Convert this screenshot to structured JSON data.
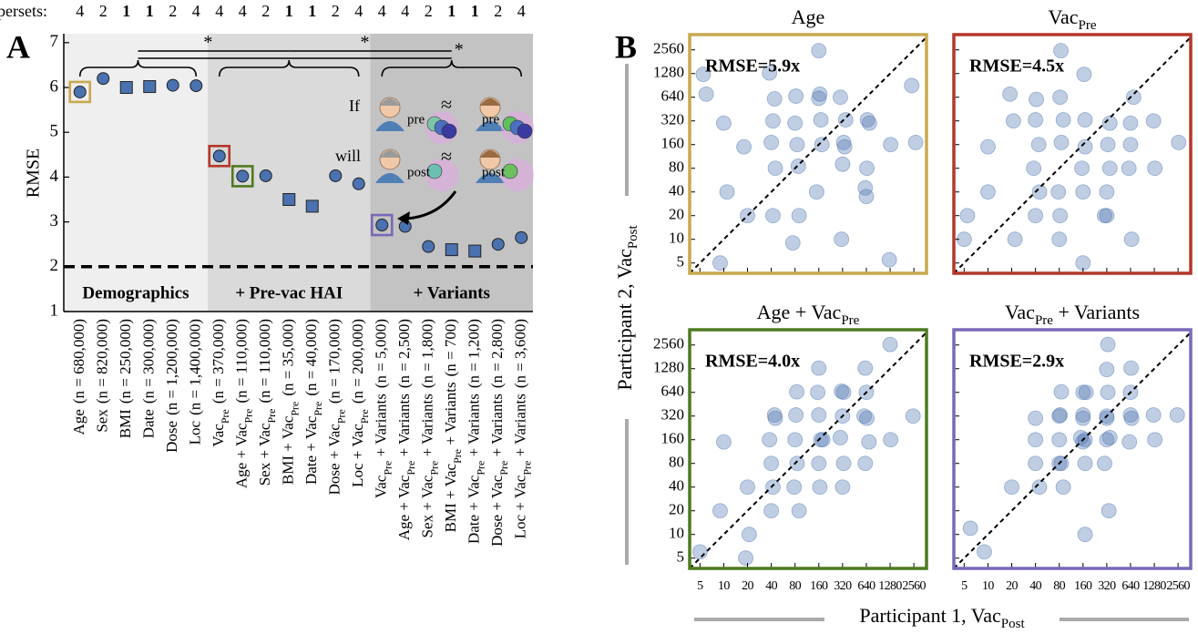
{
  "chart_data": [
    {
      "type": "dot",
      "superset_label": "persets:",
      "panel_label": "A",
      "ylabel": "RMSE",
      "categories": [
        [
          "Age"
        ],
        [
          "Sex"
        ],
        [
          "BMI"
        ],
        [
          "Date"
        ],
        [
          "Dose"
        ],
        [
          "Loc"
        ],
        [
          "Vac",
          "Pre"
        ],
        [
          "Age + Vac",
          "Pre"
        ],
        [
          "Sex + Vac",
          "Pre"
        ],
        [
          "BMI + Vac",
          "Pre"
        ],
        [
          "Date + Vac",
          "Pre"
        ],
        [
          "Dose + Vac",
          "Pre"
        ],
        [
          "Loc + Vac",
          "Pre"
        ],
        [
          "Vac",
          "Pre",
          " + Variants"
        ],
        [
          "Age + Vac",
          "Pre",
          " + Variants"
        ],
        [
          "Sex + Vac",
          "Pre",
          " + Variants"
        ],
        [
          "BMI + Vac",
          "Pre",
          " + Variants"
        ],
        [
          "Date + Vac",
          "Pre",
          " + Variants"
        ],
        [
          "Dose + Vac",
          "Pre",
          " + Variants"
        ],
        [
          "Loc + Vac",
          "Pre",
          " + Variants"
        ]
      ],
      "n_labels": [
        "(n = 680,000)",
        "(n = 820,000)",
        "(n = 250,000)",
        "(n = 300,000)",
        "(n = 1,200,000)",
        "(n = 1,400,000)",
        "(n = 370,000)",
        "(n = 110,000)",
        "(n = 110,000)",
        "(n = 35,000)",
        "(n = 40,000)",
        "(n = 170,000)",
        "(n = 200,000)",
        "(n = 5,000)",
        "(n = 2,500)",
        "(n = 1,800)",
        "(n = 700)",
        "(n = 1,200)",
        "(n = 2,800)",
        "(n = 3,600)"
      ],
      "values": [
        5.9,
        6.2,
        6.0,
        6.02,
        6.05,
        6.04,
        4.47,
        4.02,
        4.03,
        3.5,
        3.35,
        4.03,
        3.85,
        2.93,
        2.9,
        2.45,
        2.38,
        2.35,
        2.5,
        2.65
      ],
      "supersets": [
        4,
        2,
        1,
        1,
        2,
        4,
        4,
        4,
        2,
        1,
        1,
        2,
        4,
        4,
        4,
        2,
        1,
        1,
        2,
        4
      ],
      "label_colors": [
        "#000",
        "#000",
        "#5b87c5",
        "#5b87c5",
        "#000",
        "#000",
        "#000",
        "#000",
        "#000",
        "#5b87c5",
        "#5b87c5",
        "#000",
        "#000",
        "#000",
        "#000",
        "#000",
        "#5b87c5",
        "#5b87c5",
        "#000",
        "#000"
      ],
      "markers": [
        "circle",
        "circle",
        "square",
        "square",
        "circle",
        "circle",
        "circle",
        "circle",
        "circle",
        "square",
        "square",
        "circle",
        "circle",
        "circle",
        "circle",
        "circle",
        "square",
        "square",
        "circle",
        "circle"
      ],
      "highlight_colors": [
        "#c8a94e",
        null,
        null,
        null,
        null,
        null,
        "#b5372a",
        "#4e7a1f",
        null,
        null,
        null,
        null,
        null,
        "#7a68b8",
        null,
        null,
        null,
        null,
        null,
        null
      ],
      "marker_color": "#4a72b0",
      "groups": [
        {
          "label": "Demographics",
          "start": 0,
          "end": 5,
          "color": "#efefef"
        },
        {
          "label": "+ Pre-vac HAI",
          "start": 6,
          "end": 12,
          "color": "#dadada"
        },
        {
          "label": "+ Variants",
          "start": 13,
          "end": 19,
          "color": "#c3c3c3"
        }
      ],
      "reference_line": 2,
      "ylim": [
        1,
        7.2
      ],
      "yticks": [
        1,
        2,
        3,
        4,
        5,
        6,
        7
      ],
      "significance": [
        "*",
        "*",
        "*"
      ],
      "annotations": {
        "if": "If",
        "will": "will",
        "pre": "pre",
        "post": "post",
        "approx": "≈"
      }
    },
    {
      "type": "scatter-grid",
      "panel_label": "B",
      "xlabel": [
        "Participant 1, Vac",
        "Post"
      ],
      "ylabel": [
        "Participant 2, Vac",
        "Post"
      ],
      "log_scale": true,
      "xlim": [
        3.7,
        3700
      ],
      "ylim": [
        3.7,
        4000
      ],
      "xticks": [
        5,
        10,
        20,
        40,
        80,
        160,
        320,
        640,
        1280,
        2560
      ],
      "yticks": [
        5,
        10,
        20,
        40,
        80,
        160,
        320,
        640,
        1280,
        2560
      ],
      "panels": [
        {
          "title": [
            "Age"
          ],
          "rmse": "RMSE=5.9x",
          "border_color": "#c8a94e",
          "point_color": "#4a72b0",
          "x": [
            6,
            11,
            18,
            42,
            45,
            85,
            90,
            150,
            170,
            330,
            300,
            650,
            700,
            1300,
            2400,
            38,
            82,
            160,
            310,
            620,
            40,
            80,
            160,
            320,
            640,
            20,
            9,
            44,
            88,
            175,
            350,
            1250,
            2700,
            5.5,
            75,
            165,
            340,
            660,
            42,
            10
          ],
          "y": [
            700,
            40,
            150,
            320,
            80,
            160,
            20,
            40,
            330,
            170,
            640,
            80,
            300,
            160,
            900,
            1300,
            660,
            2500,
            10,
            45,
            170,
            300,
            620,
            90,
            35,
            20,
            5,
            610,
            85,
            160,
            330,
            5.5,
            170,
            1250,
            9,
            700,
            150,
            330,
            20,
            300
          ]
        },
        {
          "title": [
            "Vac",
            "Pre"
          ],
          "rmse": "RMSE=4.5x",
          "border_color": "#b5372a",
          "point_color": "#4a72b0",
          "x": [
            5.5,
            10,
            22,
            38,
            44,
            82,
            90,
            155,
            170,
            320,
            350,
            640,
            660,
            1250,
            2600,
            41,
            78,
            165,
            300,
            610,
            21,
            10,
            45,
            85,
            160,
            330,
            700,
            1300,
            5,
            40,
            80,
            160,
            320,
            640,
            19,
            84,
            170,
            350,
            40,
            82
          ],
          "y": [
            20,
            40,
            10,
            80,
            160,
            20,
            330,
            80,
            150,
            40,
            300,
            160,
            10,
            320,
            170,
            600,
            40,
            1250,
            20,
            80,
            320,
            150,
            40,
            170,
            5,
            160,
            640,
            80,
            10,
            20,
            10,
            40,
            20,
            300,
            700,
            2500,
            330,
            80,
            330,
            640
          ]
        },
        {
          "title": [
            "Age + Vac",
            "Pre"
          ],
          "rmse": "RMSE=4.0x",
          "border_color": "#4e7a1f",
          "point_color": "#4a72b0",
          "x": [
            5,
            9,
            20,
            21,
            40,
            42,
            80,
            85,
            160,
            170,
            320,
            330,
            640,
            650,
            1300,
            2500,
            38,
            82,
            160,
            310,
            620,
            40,
            78,
            155,
            300,
            600,
            10,
            19,
            45,
            84,
            165,
            330,
            690,
            1280,
            44,
            160,
            320,
            620,
            90,
            180
          ],
          "y": [
            6,
            20,
            40,
            10,
            80,
            40,
            160,
            80,
            330,
            160,
            320,
            640,
            640,
            300,
            160,
            320,
            160,
            330,
            80,
            660,
            1300,
            20,
            40,
            640,
            170,
            320,
            150,
            5,
            300,
            650,
            40,
            80,
            150,
            2600,
            330,
            1300,
            40,
            80,
            20,
            160
          ]
        },
        {
          "title": [
            "Vac",
            "Pre",
            " + Variants"
          ],
          "rmse": "RMSE=2.9x",
          "border_color": "#7a68b8",
          "point_color": "#4a72b0",
          "x": [
            6,
            9,
            20,
            40,
            45,
            80,
            85,
            160,
            170,
            320,
            330,
            640,
            660,
            1300,
            2500,
            80,
            160,
            320,
            640,
            160,
            320,
            90,
            170,
            340,
            40,
            82,
            150,
            300,
            620,
            1250,
            175,
            330,
            650,
            85,
            160,
            320,
            40,
            80,
            170,
            350
          ],
          "y": [
            12,
            6,
            40,
            80,
            40,
            160,
            80,
            330,
            160,
            320,
            640,
            640,
            300,
            160,
            330,
            320,
            300,
            160,
            330,
            640,
            1250,
            40,
            80,
            20,
            160,
            330,
            170,
            80,
            150,
            330,
            640,
            2600,
            1300,
            650,
            150,
            300,
            300,
            80,
            10,
            170
          ]
        }
      ]
    }
  ]
}
